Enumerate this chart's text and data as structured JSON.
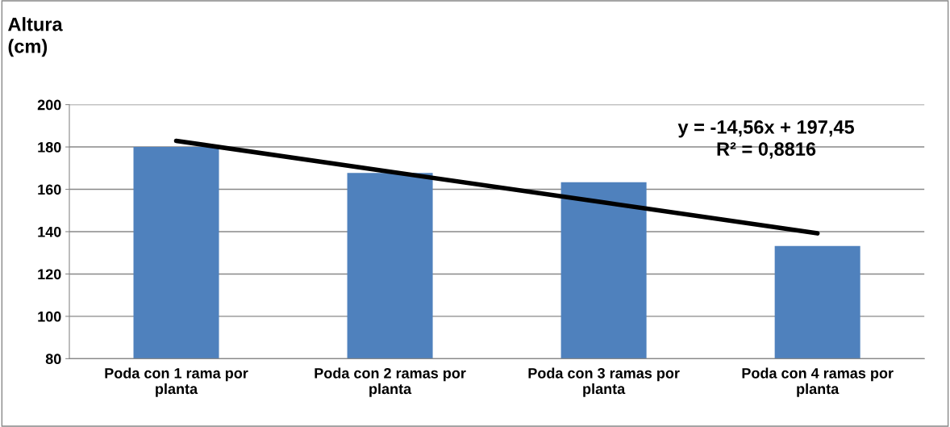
{
  "chart_data": {
    "type": "bar",
    "ylabel": "Altura\n(cm)",
    "categories": [
      "Poda con 1 rama por\nplanta",
      "Poda con 2 ramas por\nplanta",
      "Poda con 3 ramas por\nplanta",
      "Poda con 4 ramas por\nplanta"
    ],
    "series": [
      {
        "color": "#4f81bd",
        "values": [
          180,
          167.7,
          163.3,
          133.2
        ]
      },
      {
        "type": "line",
        "color": "#000000",
        "values": [
          182.9,
          168.3,
          153.8,
          139.2
        ]
      }
    ],
    "ylim": [
      80,
      200
    ],
    "yticks": [
      80,
      100,
      120,
      140,
      160,
      180,
      200
    ],
    "grid": "y",
    "annotations": [
      "y = -14,56x + 197,45\nR² = 0,8816"
    ]
  }
}
